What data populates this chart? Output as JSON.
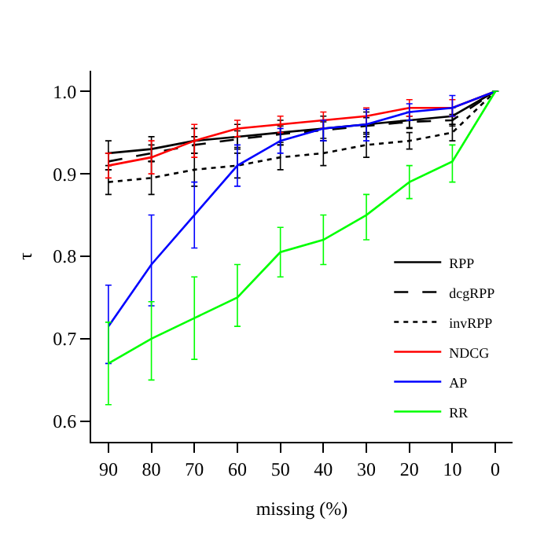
{
  "chart_data": {
    "type": "line",
    "xlabel": "missing (%)",
    "ylabel": "τ",
    "x": [
      90,
      80,
      70,
      60,
      50,
      40,
      30,
      20,
      10,
      0
    ],
    "xlim": [
      94,
      -4
    ],
    "xticks": [
      90,
      80,
      70,
      60,
      50,
      40,
      30,
      20,
      10,
      0
    ],
    "ylim": [
      0.575,
      1.025
    ],
    "yticks": [
      {
        "value": 0.6,
        "label": "0.6"
      },
      {
        "value": 0.7,
        "label": "0.7"
      },
      {
        "value": 0.8,
        "label": "0.8"
      },
      {
        "value": 0.9,
        "label": "0.9"
      },
      {
        "value": 1.0,
        "label": "1.0"
      }
    ],
    "grid": false,
    "legend": "bottom right",
    "marker": "none",
    "series": [
      {
        "name": "RPP",
        "color": "#000000",
        "line_style": "solid",
        "values": [
          0.925,
          0.93,
          0.94,
          0.945,
          0.95,
          0.955,
          0.96,
          0.965,
          0.97,
          1.0
        ],
        "errors": [
          0.015,
          0.015,
          0.015,
          0.015,
          0.015,
          0.015,
          0.015,
          0.01,
          0.01,
          null
        ]
      },
      {
        "name": "dcgRPP",
        "color": "#000000",
        "line_style": "dashed",
        "values": [
          0.915,
          0.925,
          0.935,
          0.942,
          0.948,
          0.953,
          0.958,
          0.963,
          0.965,
          1.0
        ],
        "errors": [
          0.01,
          0.01,
          0.01,
          0.01,
          0.01,
          0.01,
          0.01,
          0.007,
          0.007,
          null
        ]
      },
      {
        "name": "invRPP",
        "color": "#000000",
        "line_style": "dotted",
        "values": [
          0.89,
          0.895,
          0.905,
          0.91,
          0.92,
          0.925,
          0.935,
          0.94,
          0.95,
          1.0
        ],
        "errors": [
          0.015,
          0.02,
          0.02,
          0.015,
          0.015,
          0.015,
          0.015,
          0.01,
          0.01,
          null
        ]
      },
      {
        "name": "NDCG",
        "color": "#ff0000",
        "line_style": "solid",
        "values": [
          0.91,
          0.92,
          0.94,
          0.955,
          0.96,
          0.965,
          0.97,
          0.98,
          0.98,
          1.0
        ],
        "errors": [
          0.015,
          0.02,
          0.02,
          0.01,
          0.01,
          0.01,
          0.01,
          0.01,
          0.01,
          null
        ]
      },
      {
        "name": "AP",
        "color": "#0000ff",
        "line_style": "solid",
        "values": [
          0.715,
          0.79,
          0.85,
          0.91,
          0.94,
          0.955,
          0.96,
          0.975,
          0.98,
          1.0
        ],
        "errors": [
          [
            0.67,
            0.765
          ],
          [
            0.74,
            0.85
          ],
          [
            0.81,
            0.89
          ],
          [
            0.885,
            0.935
          ],
          [
            0.925,
            0.955
          ],
          [
            0.94,
            0.965
          ],
          [
            0.94,
            0.978
          ],
          [
            0.965,
            0.985
          ],
          [
            0.97,
            0.995
          ],
          null
        ]
      },
      {
        "name": "RR",
        "color": "#00ff00",
        "line_style": "solid",
        "values": [
          0.67,
          0.7,
          0.725,
          0.75,
          0.805,
          0.82,
          0.85,
          0.89,
          0.915,
          1.0
        ],
        "errors": [
          [
            0.62,
            0.72
          ],
          [
            0.65,
            0.745
          ],
          [
            0.675,
            0.775
          ],
          [
            0.715,
            0.79
          ],
          [
            0.775,
            0.835
          ],
          [
            0.79,
            0.85
          ],
          [
            0.82,
            0.875
          ],
          [
            0.87,
            0.91
          ],
          [
            0.89,
            0.935
          ],
          null
        ]
      }
    ]
  }
}
